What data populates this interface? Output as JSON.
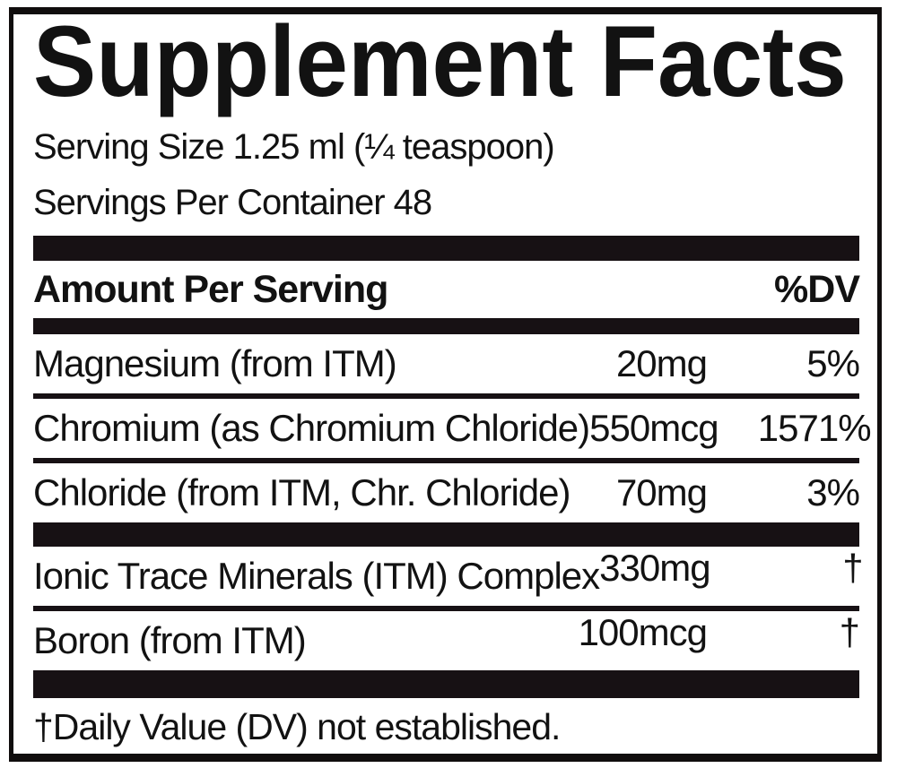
{
  "label": {
    "title": "Supplement Facts",
    "serving_size": "Serving Size 1.25 ml (¼ teaspoon)",
    "servings_per_container": "Servings Per Container 48",
    "header": {
      "amount_per_serving": "Amount Per Serving",
      "dv": "%DV"
    },
    "rows": [
      {
        "name": "Magnesium (from ITM)",
        "amount": "20mg",
        "dv": "5%"
      },
      {
        "name": "Chromium (as Chromium Chloride)",
        "amount": "550mcg",
        "dv": "1571%"
      },
      {
        "name": "Chloride (from ITM, Chr. Chloride)",
        "amount": "70mg",
        "dv": "3%"
      },
      {
        "name": "Ionic Trace Minerals (ITM) Complex",
        "amount": "330mg",
        "dv": "†"
      },
      {
        "name": "Boron (from ITM)",
        "amount": "100mcg",
        "dv": "†"
      }
    ],
    "footnote": "†Daily Value (DV) not established.",
    "colors": {
      "ink": "#121212",
      "bar": "#171114",
      "background": "#ffffff"
    }
  }
}
